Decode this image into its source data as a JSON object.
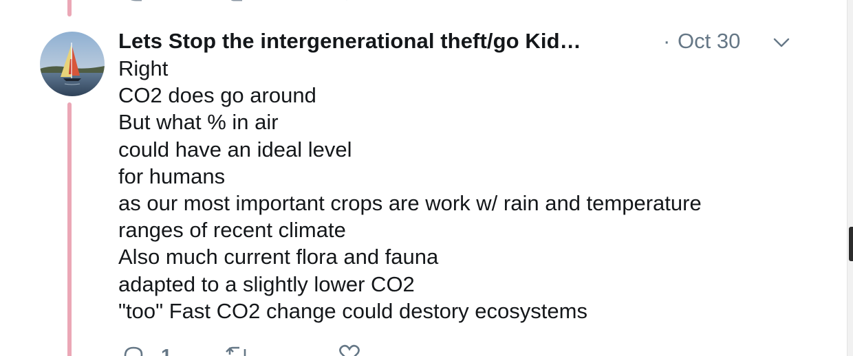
{
  "tweet": {
    "author_name": "Lets Stop the intergenerational theft/go Kid…",
    "separator": "·",
    "timestamp": "Oct 30",
    "avatar_icon": "sailboat-avatar",
    "lines": [
      "Right",
      "CO2 does go around",
      "But what % in air",
      "could have an ideal level",
      "for humans",
      "as our most important crops are work w/ rain and temperature",
      "ranges of recent climate",
      "Also much current flora and fauna",
      "adapted to a slightly lower CO2",
      "\"too\" Fast CO2 change could destory ecosystems"
    ],
    "actions": {
      "reply_icon": "reply-icon",
      "reply_count": "1",
      "retweet_icon": "retweet-icon",
      "like_icon": "heart-icon",
      "menu_icon": "chevron-down-icon"
    }
  },
  "colors": {
    "text": "#14171a",
    "secondary": "#657786",
    "thread_line": "#eba7b6",
    "background": "#ffffff"
  }
}
